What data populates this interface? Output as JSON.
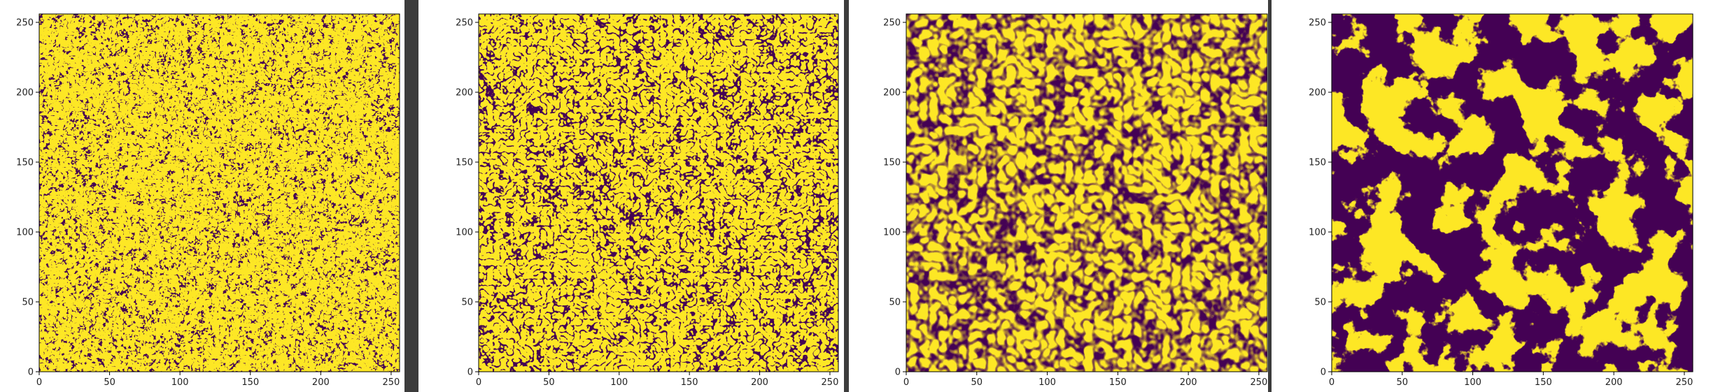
{
  "colormap": {
    "low": "#440154",
    "mid": "#21918c",
    "high": "#fde725"
  },
  "chart_data": [
    {
      "type": "heatmap",
      "pattern": "labyrinthine stripes, fine wavelength",
      "xlim": [
        0,
        256
      ],
      "ylim": [
        0,
        256
      ],
      "x_ticks": [
        "0",
        "50",
        "100",
        "150",
        "200",
        "250"
      ],
      "y_ticks": [
        "0",
        "50",
        "100",
        "150",
        "200",
        "250"
      ]
    },
    {
      "type": "heatmap",
      "pattern": "labyrinthine stripes, medium wavelength",
      "xlim": [
        0,
        256
      ],
      "ylim": [
        0,
        256
      ],
      "x_ticks": [
        "0",
        "50",
        "100",
        "150",
        "200",
        "250"
      ],
      "y_ticks": [
        "0",
        "50",
        "100",
        "150",
        "200",
        "250"
      ]
    },
    {
      "type": "heatmap",
      "pattern": "labyrinthine stripes, coarse wavelength, soft edges",
      "xlim": [
        0,
        256
      ],
      "ylim": [
        0,
        256
      ],
      "x_ticks": [
        "0",
        "50",
        "100",
        "150",
        "200",
        "250"
      ],
      "y_ticks": [
        "0",
        "50",
        "100",
        "150",
        "200",
        "250"
      ]
    },
    {
      "type": "heatmap",
      "pattern": "large irregular blobs",
      "xlim": [
        0,
        256
      ],
      "ylim": [
        0,
        256
      ],
      "x_ticks": [
        "0",
        "50",
        "100",
        "150",
        "200",
        "250"
      ],
      "y_ticks": [
        "0",
        "50",
        "100",
        "150",
        "200",
        "250"
      ]
    }
  ]
}
